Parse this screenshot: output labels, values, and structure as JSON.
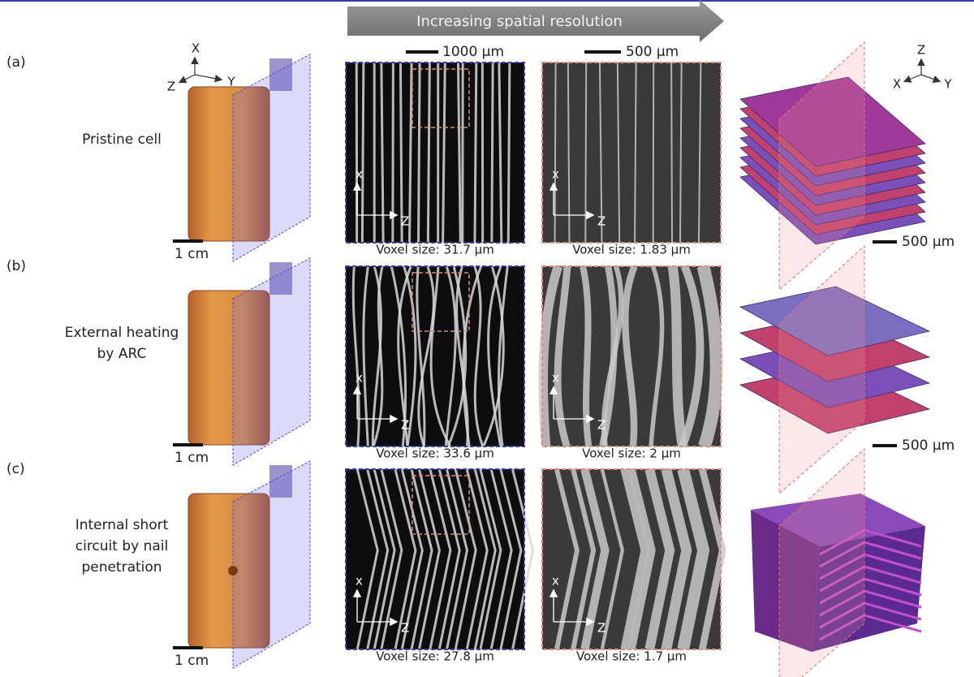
{
  "header": {
    "arrow_label": "Increasing spatial resolution",
    "scale_low": "1000 μm",
    "scale_high": "500 μm"
  },
  "cell_axes": {
    "x": "X",
    "y": "Y",
    "z": "Z"
  },
  "model_axes": {
    "z": "Z",
    "x": "X",
    "y": "Y"
  },
  "slice_axes": {
    "vertical": "x",
    "horizontal": "Z"
  },
  "rows": [
    {
      "label": "(a)",
      "title_lines": [
        "Pristine cell"
      ],
      "cell_scale": "1 cm",
      "voxel_low": "Voxel size: 31.7 μm",
      "voxel_high": "Voxel size: 1.83 μm",
      "model_scale": "500 μm"
    },
    {
      "label": "(b)",
      "title_lines": [
        "External heating",
        "by ARC"
      ],
      "cell_scale": "1 cm",
      "voxel_low": "Voxel size: 33.6 μm",
      "voxel_high": "Voxel size: 2 μm",
      "model_scale": "500 μm"
    },
    {
      "label": "(c)",
      "title_lines": [
        "Internal short",
        "circuit by nail",
        "penetration"
      ],
      "cell_scale": "1 cm",
      "voxel_low": "Voxel size: 27.8 μm",
      "voxel_high": "Voxel size: 1.7 μm"
    }
  ]
}
